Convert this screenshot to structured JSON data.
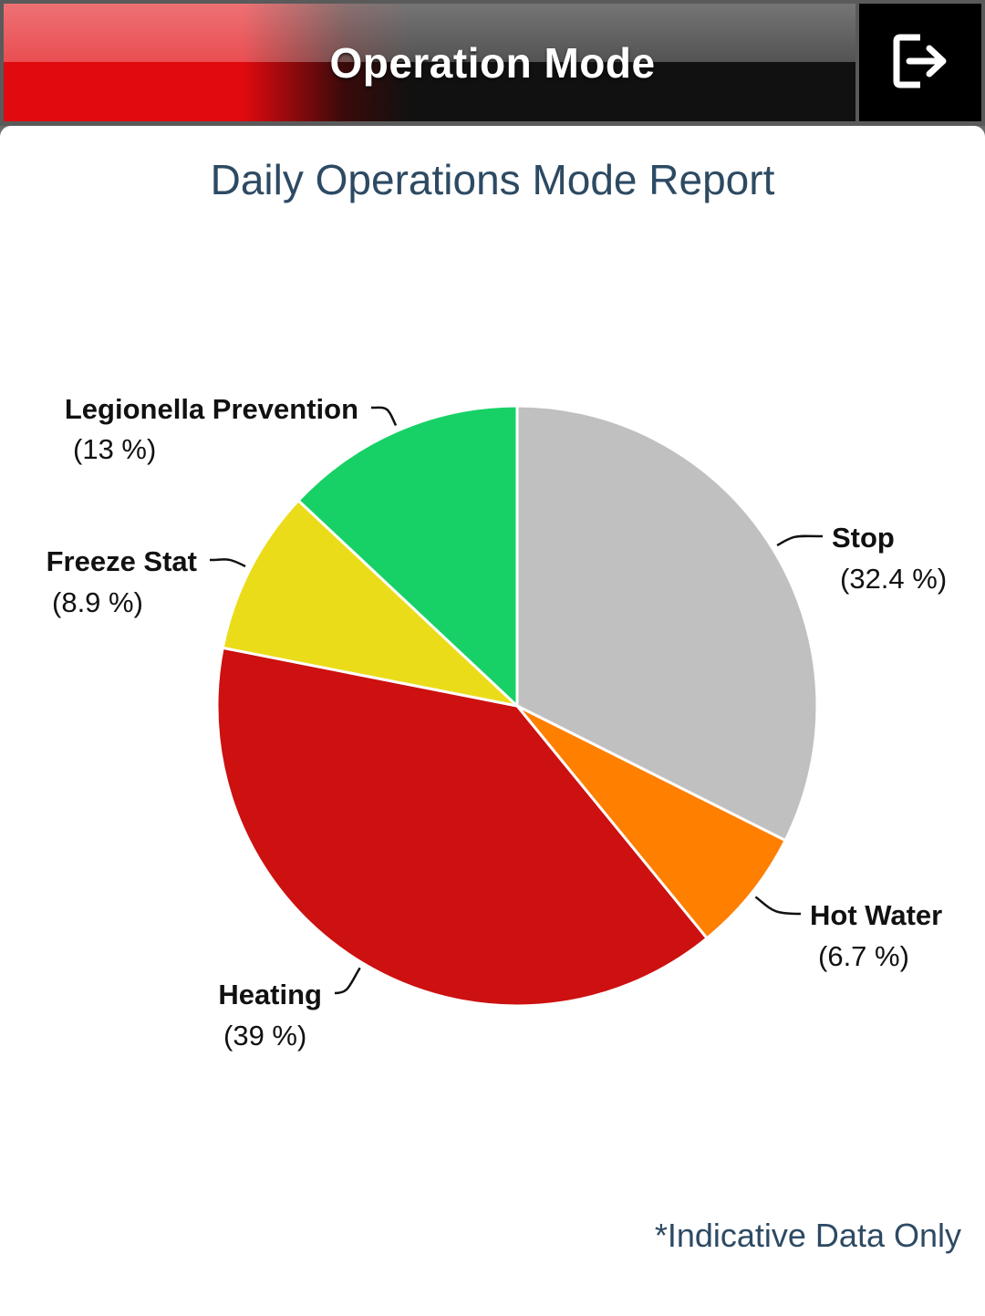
{
  "header": {
    "title": "Operation Mode",
    "exit_icon": "logout-icon"
  },
  "report": {
    "title": "Daily Operations Mode Report",
    "footnote": "*Indicative Data Only"
  },
  "chart_data": {
    "type": "pie",
    "title": "Daily Operations Mode Report",
    "series": [
      {
        "name": "Stop",
        "value": 32.4,
        "pct_label": "(32.4 %)",
        "color": "#c0c0c0"
      },
      {
        "name": "Hot Water",
        "value": 6.7,
        "pct_label": "(6.7 %)",
        "color": "#ff7f00"
      },
      {
        "name": "Heating",
        "value": 39,
        "pct_label": "(39 %)",
        "color": "#cd1010"
      },
      {
        "name": "Freeze Stat",
        "value": 8.9,
        "pct_label": "(8.9 %)",
        "color": "#ebdc1a"
      },
      {
        "name": "Legionella Prevention",
        "value": 13,
        "pct_label": "(13 %)",
        "color": "#17d167"
      }
    ]
  }
}
